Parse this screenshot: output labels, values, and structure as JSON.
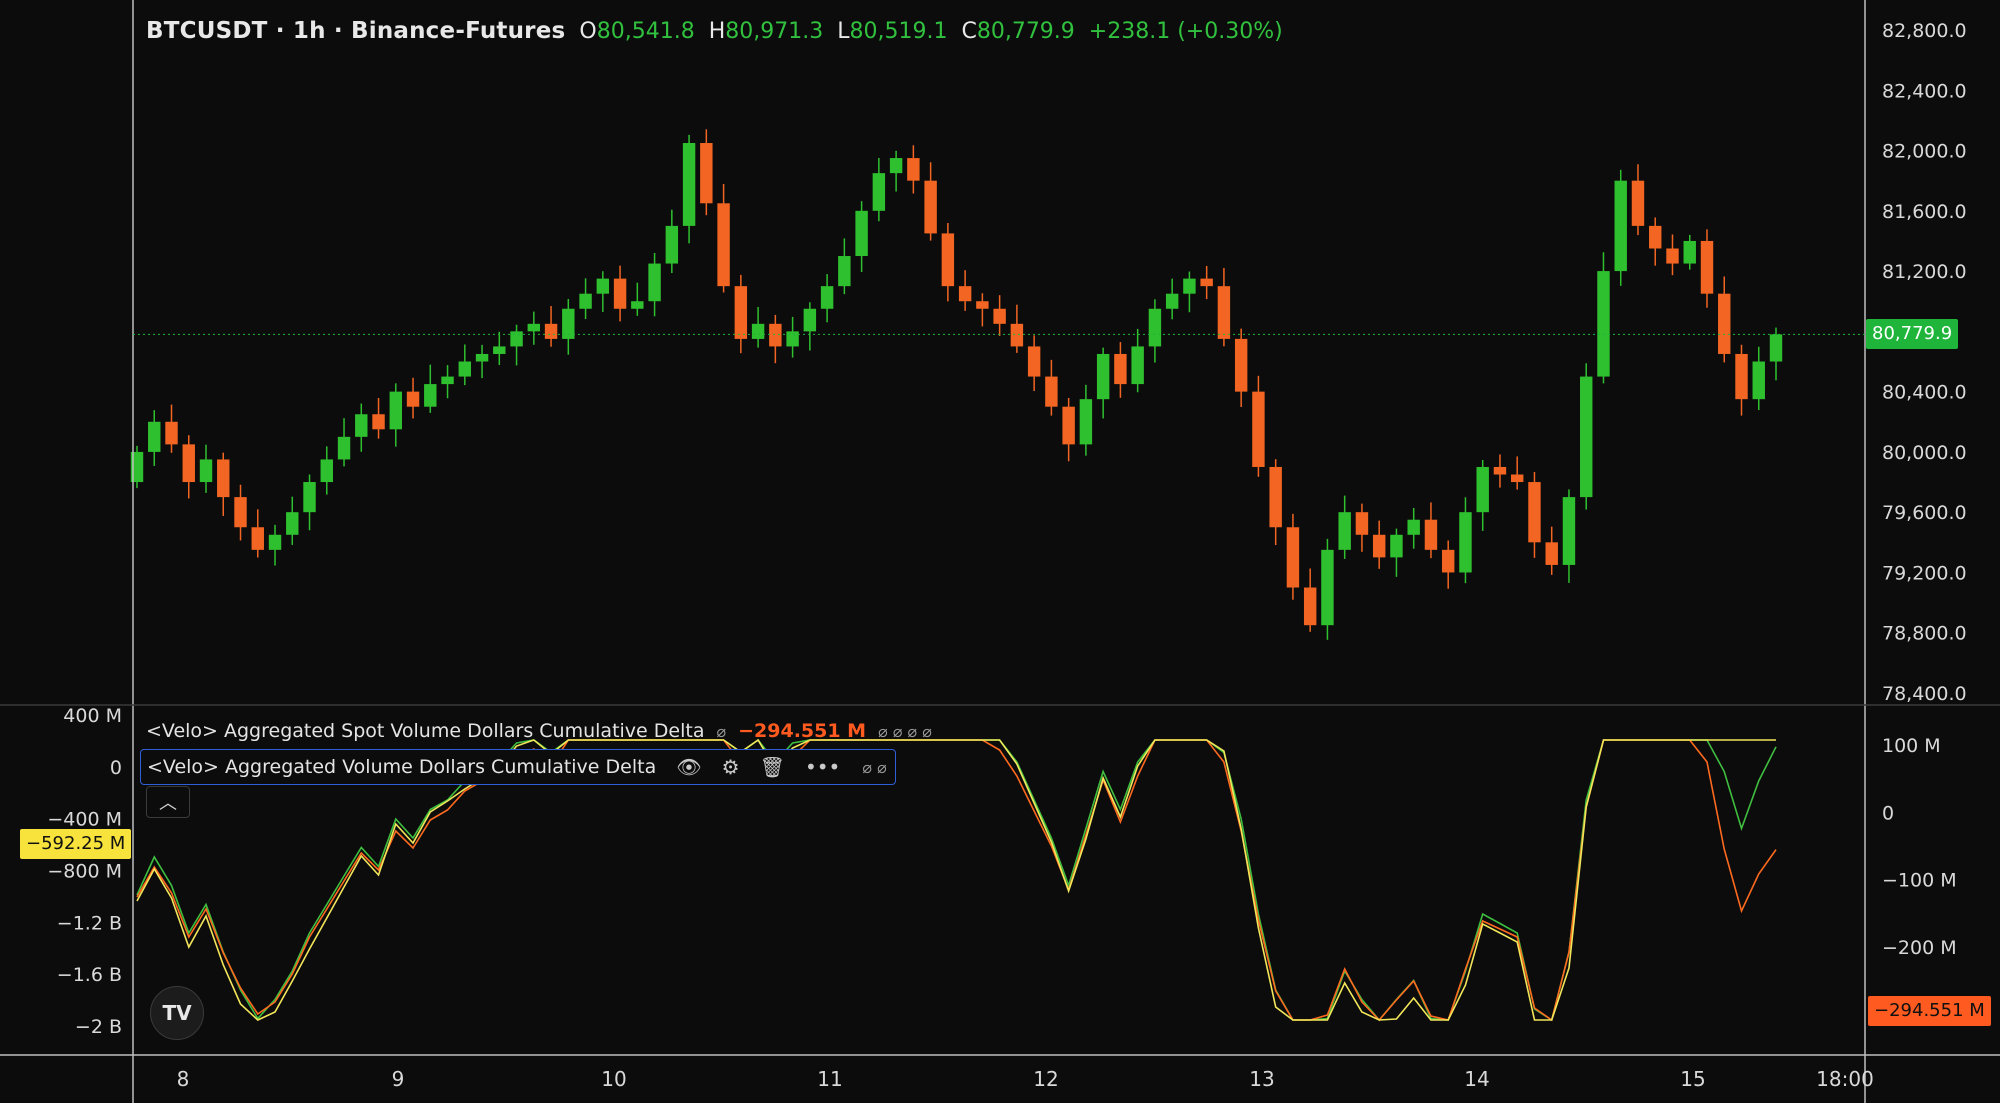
{
  "header": {
    "symbol": "BTCUSDT · 1h · Binance-Futures",
    "open_key": "O",
    "open": "80,541.8",
    "high_key": "H",
    "high": "80,971.3",
    "low_key": "L",
    "low": "80,519.1",
    "close_key": "C",
    "close": "80,779.9",
    "change": "+238.1 (+0.30%)"
  },
  "indicators": {
    "spot_cvd_title": "<Velo> Aggregated Spot Volume Dollars Cumulative Delta",
    "spot_cvd_value": "−294.551 M",
    "agg_cvd_title": "<Velo> Aggregated Volume Dollars Cumulative Delta"
  },
  "price_axis": {
    "ticks": [
      "82,800.0",
      "82,400.0",
      "82,000.0",
      "81,600.0",
      "81,200.0",
      "80,779.9",
      "80,400.0",
      "80,000.0",
      "79,600.0",
      "79,200.0",
      "78,800.0",
      "78,400.0"
    ],
    "current_label": "80,779.9"
  },
  "left_axis": {
    "ticks": [
      "400 M",
      "0",
      "−400 M",
      "−800 M",
      "−1.2 B",
      "−1.6 B",
      "−2 B"
    ],
    "current_label": "−592.25 M"
  },
  "right_lower_axis": {
    "ticks": [
      "100 M",
      "0",
      "−100 M",
      "−200 M"
    ],
    "current_label": "−294.551 M"
  },
  "time_axis": {
    "ticks": [
      "8",
      "9",
      "10",
      "11",
      "12",
      "13",
      "14",
      "15",
      "18:00"
    ]
  },
  "logo_text": "TV",
  "colors": {
    "up": "#2fc02f",
    "down": "#f26522",
    "green_line": "#3fbf3f",
    "yellow_line": "#f2e65a",
    "orange_line": "#ff6a1f",
    "current_price": "#1fb53a",
    "yellow_label": "#f7e33c",
    "orange_label": "#ff5a1f"
  },
  "chart_data": [
    {
      "type": "candlestick",
      "title": "BTCUSDT · 1h · Binance-Futures",
      "ylim": [
        78400,
        82800
      ],
      "x_ticks": [
        "8",
        "9",
        "10",
        "11",
        "12",
        "13",
        "14",
        "15",
        "18:00"
      ],
      "current_price": 80779.9,
      "ohlc_note": "hourly candles, close path",
      "closes": [
        80000,
        80200,
        80050,
        79800,
        79950,
        79700,
        79500,
        79350,
        79450,
        79600,
        79800,
        79950,
        80100,
        80250,
        80150,
        80400,
        80300,
        80450,
        80500,
        80600,
        80650,
        80700,
        80800,
        80850,
        80750,
        80950,
        81050,
        81150,
        80950,
        81000,
        81250,
        81500,
        82050,
        81650,
        81100,
        80750,
        80850,
        80700,
        80800,
        80950,
        81100,
        81300,
        81600,
        81850,
        81950,
        81800,
        81450,
        81100,
        81000,
        80950,
        80850,
        80700,
        80500,
        80300,
        80050,
        80350,
        80650,
        80450,
        80700,
        80950,
        81050,
        81150,
        81100,
        80750,
        80400,
        79900,
        79500,
        79100,
        78850,
        79350,
        79600,
        79450,
        79300,
        79450,
        79550,
        79350,
        79200,
        79600,
        79900,
        79850,
        79800,
        79400,
        79250,
        79700,
        80500,
        81200,
        81800,
        81500,
        81350,
        81250,
        81400,
        81050,
        80650,
        80350,
        80600,
        80780
      ],
      "series": [
        {
          "name": "<Velo> Aggregated Spot Volume Dollars Cumulative Delta",
          "axis": "right",
          "last": -294.551
        }
      ]
    },
    {
      "type": "line",
      "left_ylim": [
        -2000,
        400
      ],
      "right_ylim": [
        -310,
        120
      ],
      "series": [
        {
          "name": "<Velo> Aggregated Spot Volume Dollars Cumulative Delta",
          "color": "orange",
          "axis": "right",
          "last": -294.551
        },
        {
          "name": "<Velo> Aggregated Volume Dollars Cumulative Delta",
          "color": "yellow",
          "axis": "left",
          "last": -592.25
        }
      ]
    }
  ]
}
